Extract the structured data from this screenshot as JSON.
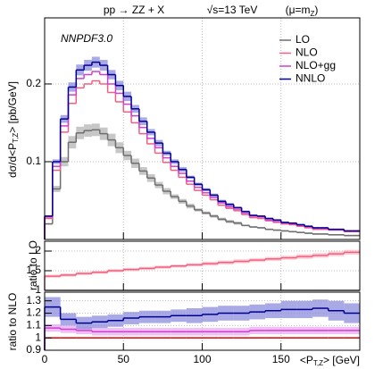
{
  "chart_data": [
    {
      "type": "histogram",
      "title": "pp → ZZ + X",
      "energy": "√s=13 TeV",
      "scale": "(μ=m",
      "scale_sub": "Z",
      "scale_end": ")",
      "annotation": "NNPDF3.0",
      "ylabel": "dσ/d<P",
      "ylabel_sub": "T,Z",
      "ylabel_end": "> [pb/GeV]",
      "bins": [
        0,
        5,
        10,
        15,
        20,
        25,
        30,
        35,
        40,
        45,
        50,
        55,
        60,
        65,
        70,
        75,
        80,
        85,
        90,
        95,
        100,
        105,
        110,
        115,
        120,
        125,
        130,
        135,
        140,
        145,
        150,
        155,
        160,
        165,
        170,
        175,
        180,
        185,
        190,
        195,
        200
      ],
      "xlim": [
        0,
        200
      ],
      "ylim": [
        0,
        0.285
      ],
      "yticks": [
        0.1,
        0.2
      ],
      "grid": true,
      "legend": "upper right",
      "series": [
        {
          "name": "LO",
          "color": "#6e6e6e",
          "band_color": "#b4b4b4",
          "values": [
            0.02,
            0.065,
            0.1,
            0.125,
            0.137,
            0.14,
            0.141,
            0.136,
            0.128,
            0.118,
            0.108,
            0.098,
            0.088,
            0.079,
            0.07,
            0.062,
            0.055,
            0.049,
            0.043,
            0.038,
            0.034,
            0.03,
            0.026,
            0.023,
            0.021,
            0.018,
            0.016,
            0.015,
            0.013,
            0.012,
            0.011,
            0.01,
            0.009,
            0.008,
            0.007,
            0.007,
            0.006,
            0.006,
            0.005,
            0.005
          ],
          "errors": [
            0.001,
            0.004,
            0.006,
            0.008,
            0.008,
            0.008,
            0.008,
            0.008,
            0.008,
            0.007,
            0.006,
            0.006,
            0.005,
            0.005,
            0.004,
            0.004,
            0.003,
            0.003,
            0.003,
            0.002,
            0.002,
            0.002,
            0.002,
            0.002,
            0.002,
            0.001,
            0.001,
            0.001,
            0.001,
            0.001,
            0.001,
            0.001,
            0.001,
            0.001,
            0.001,
            0.001,
            0.001,
            0.001,
            0.001,
            0.001
          ]
        },
        {
          "name": "NLO",
          "color": "#f06080",
          "values": [
            0.027,
            0.089,
            0.138,
            0.175,
            0.195,
            0.2,
            0.204,
            0.2,
            0.189,
            0.177,
            0.164,
            0.15,
            0.136,
            0.123,
            0.111,
            0.099,
            0.089,
            0.08,
            0.071,
            0.063,
            0.057,
            0.051,
            0.044,
            0.04,
            0.037,
            0.032,
            0.028,
            0.027,
            0.024,
            0.022,
            0.02,
            0.019,
            0.017,
            0.015,
            0.013,
            0.013,
            0.012,
            0.012,
            0.01,
            0.01
          ]
        },
        {
          "name": "NLO+gg",
          "color": "#d040d0",
          "values": [
            0.029,
            0.094,
            0.146,
            0.186,
            0.207,
            0.212,
            0.216,
            0.212,
            0.2,
            0.188,
            0.174,
            0.159,
            0.144,
            0.13,
            0.118,
            0.105,
            0.094,
            0.085,
            0.075,
            0.067,
            0.06,
            0.054,
            0.047,
            0.042,
            0.039,
            0.034,
            0.03,
            0.029,
            0.025,
            0.023,
            0.021,
            0.02,
            0.018,
            0.016,
            0.014,
            0.014,
            0.013,
            0.013,
            0.011,
            0.011
          ]
        },
        {
          "name": "NNLO",
          "color": "#000090",
          "band_color": "#8c8cdc",
          "values": [
            0.03,
            0.1,
            0.155,
            0.196,
            0.218,
            0.224,
            0.228,
            0.224,
            0.212,
            0.198,
            0.184,
            0.168,
            0.152,
            0.138,
            0.124,
            0.111,
            0.1,
            0.09,
            0.08,
            0.071,
            0.064,
            0.057,
            0.049,
            0.045,
            0.041,
            0.036,
            0.031,
            0.03,
            0.027,
            0.025,
            0.022,
            0.021,
            0.019,
            0.017,
            0.015,
            0.015,
            0.013,
            0.013,
            0.011,
            0.011
          ],
          "errors": [
            0.001,
            0.003,
            0.005,
            0.006,
            0.007,
            0.007,
            0.007,
            0.007,
            0.006,
            0.006,
            0.006,
            0.005,
            0.005,
            0.004,
            0.004,
            0.003,
            0.003,
            0.003,
            0.002,
            0.002,
            0.002,
            0.002,
            0.002,
            0.002,
            0.001,
            0.001,
            0.001,
            0.001,
            0.001,
            0.001,
            0.001,
            0.001,
            0.001,
            0.001,
            0.001,
            0.001,
            0.001,
            0.001,
            0.001,
            0.001
          ]
        }
      ]
    },
    {
      "type": "histogram",
      "ylabel": "ratio to LO",
      "bins": [
        0,
        10,
        20,
        30,
        40,
        50,
        60,
        70,
        80,
        90,
        100,
        110,
        120,
        130,
        140,
        150,
        160,
        170,
        180,
        190,
        200
      ],
      "xlim": [
        0,
        200
      ],
      "ylim": [
        1,
        2.25
      ],
      "yticks": [
        1,
        1.5,
        2
      ],
      "grid": true,
      "series": [
        {
          "color": "#6e6e6e",
          "values": [
            1,
            1,
            1,
            1,
            1,
            1,
            1,
            1,
            1,
            1,
            1,
            1,
            1,
            1,
            1,
            1,
            1,
            1,
            1,
            1
          ]
        },
        {
          "color": "#f06080",
          "band_color": "#ffbcc4",
          "values": [
            1.36,
            1.39,
            1.43,
            1.46,
            1.5,
            1.53,
            1.56,
            1.59,
            1.62,
            1.65,
            1.68,
            1.71,
            1.74,
            1.77,
            1.8,
            1.83,
            1.86,
            1.89,
            1.93,
            1.97
          ],
          "errors": [
            0.04,
            0.04,
            0.04,
            0.04,
            0.04,
            0.04,
            0.04,
            0.04,
            0.04,
            0.04,
            0.05,
            0.05,
            0.05,
            0.05,
            0.05,
            0.05,
            0.06,
            0.06,
            0.06,
            0.06
          ]
        }
      ]
    },
    {
      "type": "histogram",
      "ylabel": "ratio to NLO",
      "xlabel": "<P",
      "xlabel_sub": "T,Z",
      "xlabel_end": "> [GeV]",
      "bins": [
        0,
        10,
        20,
        30,
        40,
        50,
        60,
        70,
        80,
        90,
        100,
        110,
        120,
        130,
        140,
        150,
        160,
        170,
        180,
        190,
        200
      ],
      "xlim": [
        0,
        200
      ],
      "xticks": [
        0,
        50,
        100,
        150
      ],
      "ylim": [
        0.9,
        1.37
      ],
      "yticks": [
        0.9,
        1,
        1.1,
        1.2,
        1.3
      ],
      "grid": true,
      "series": [
        {
          "color": "#e00000",
          "values": [
            1,
            1,
            1,
            1,
            1,
            1,
            1,
            1,
            1,
            1,
            1,
            1,
            1,
            1,
            1,
            1,
            1,
            1,
            1,
            1
          ]
        },
        {
          "color": "#d040d0",
          "band_color": "#e8a8f0",
          "values": [
            1.08,
            1.07,
            1.06,
            1.05,
            1.05,
            1.05,
            1.05,
            1.05,
            1.05,
            1.05,
            1.05,
            1.05,
            1.05,
            1.06,
            1.06,
            1.06,
            1.06,
            1.06,
            1.06,
            1.06
          ],
          "errors": [
            0.03,
            0.03,
            0.03,
            0.03,
            0.03,
            0.03,
            0.03,
            0.03,
            0.03,
            0.03,
            0.03,
            0.03,
            0.03,
            0.03,
            0.03,
            0.03,
            0.03,
            0.03,
            0.03,
            0.03
          ]
        },
        {
          "color": "#000090",
          "band_color": "#8c8cdc",
          "values": [
            1.25,
            1.15,
            1.12,
            1.13,
            1.14,
            1.16,
            1.17,
            1.17,
            1.18,
            1.18,
            1.19,
            1.2,
            1.2,
            1.21,
            1.22,
            1.23,
            1.23,
            1.24,
            1.22,
            1.2
          ],
          "errors": [
            0.08,
            0.05,
            0.05,
            0.05,
            0.05,
            0.05,
            0.05,
            0.05,
            0.05,
            0.06,
            0.06,
            0.06,
            0.06,
            0.06,
            0.06,
            0.07,
            0.07,
            0.07,
            0.08,
            0.08
          ]
        }
      ]
    }
  ]
}
